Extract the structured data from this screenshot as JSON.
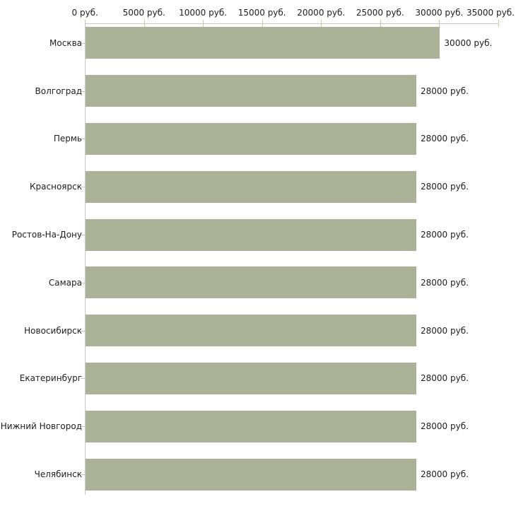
{
  "chart_data": {
    "type": "bar",
    "orientation": "horizontal",
    "categories": [
      "Москва",
      "Волгоград",
      "Пермь",
      "Красноярск",
      "Ростов-На-Дону",
      "Самара",
      "Новосибирск",
      "Екатеринбург",
      "Нижний Новгород",
      "Челябинск"
    ],
    "values": [
      30000,
      28000,
      28000,
      28000,
      28000,
      28000,
      28000,
      28000,
      28000,
      28000
    ],
    "value_labels": [
      "30000 руб.",
      "28000 руб.",
      "28000 руб.",
      "28000 руб.",
      "28000 руб.",
      "28000 руб.",
      "28000 руб.",
      "28000 руб.",
      "28000 руб.",
      "28000 руб."
    ],
    "x_ticks": [
      0,
      5000,
      10000,
      15000,
      20000,
      25000,
      30000,
      35000
    ],
    "x_tick_labels": [
      "0 руб.",
      "5000 руб.",
      "10000 руб.",
      "15000 руб.",
      "20000 руб.",
      "25000 руб.",
      "30000 руб.",
      "35000 руб."
    ],
    "xlim": [
      0,
      35000
    ],
    "unit": "руб.",
    "grid": false,
    "legend_position": "none",
    "colors": {
      "bar": "#acb298",
      "axis_line": "#c9c9c9",
      "tick_mark": "#c5caa5",
      "text": "#1e1e1e",
      "background": "#ffffff"
    }
  }
}
